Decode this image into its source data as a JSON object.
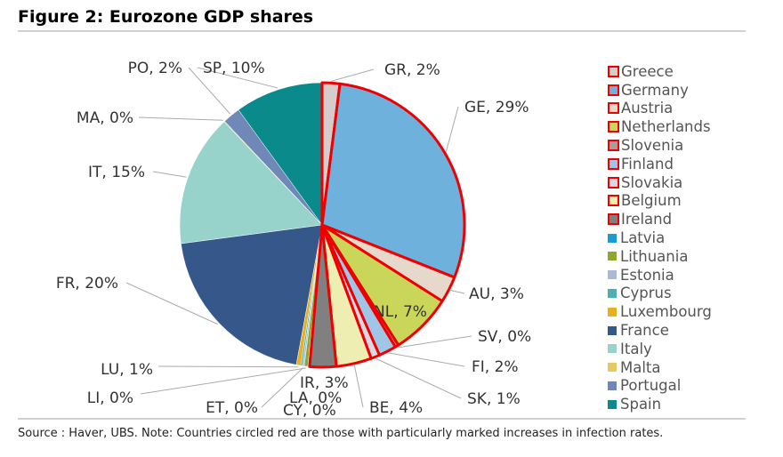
{
  "title": "Figure 2: Eurozone GDP shares",
  "source": "Source : Haver, UBS. Note: Countries circled red are those with particularly marked increases in infection rates.",
  "chart_data": {
    "type": "pie",
    "title": "Figure 2: Eurozone GDP shares",
    "unit": "%",
    "legend_position": "right",
    "slices": [
      {
        "name": "Greece",
        "label": "GR, 2%",
        "value": 2,
        "color": "#d6cccc",
        "highlight": true
      },
      {
        "name": "Germany",
        "label": "GE, 29%",
        "value": 29,
        "color": "#6fb1dd",
        "highlight": true
      },
      {
        "name": "Austria",
        "label": "AU, 3%",
        "value": 3,
        "color": "#e6d9cb",
        "highlight": true
      },
      {
        "name": "Netherlands",
        "label": "NL, 7%",
        "value": 7,
        "color": "#c9d65a",
        "highlight": true
      },
      {
        "name": "Slovenia",
        "label": "SV, 0%",
        "value": 0.4,
        "color": "#a0a0a0",
        "highlight": true
      },
      {
        "name": "Finland",
        "label": "FI, 2%",
        "value": 2,
        "color": "#9fc6e6",
        "highlight": true
      },
      {
        "name": "Slovakia",
        "label": "SK, 1%",
        "value": 1,
        "color": "#d9d9e6",
        "highlight": true
      },
      {
        "name": "Belgium",
        "label": "BE, 4%",
        "value": 4,
        "color": "#eeeeb3",
        "highlight": true
      },
      {
        "name": "Ireland",
        "label": "IR, 3%",
        "value": 3,
        "color": "#808080",
        "highlight": true
      },
      {
        "name": "Latvia",
        "label": "LA, 0%",
        "value": 0.2,
        "color": "#1a9bd7",
        "highlight": false
      },
      {
        "name": "Lithuania",
        "label": "LI, 0%",
        "value": 0.4,
        "color": "#8ea82f",
        "highlight": false
      },
      {
        "name": "Estonia",
        "label": "ET, 0%",
        "value": 0.2,
        "color": "#a9bad8",
        "highlight": false
      },
      {
        "name": "Cyprus",
        "label": "CY, 0%",
        "value": 0.2,
        "color": "#4cb0b3",
        "highlight": false
      },
      {
        "name": "Luxembourg",
        "label": "LU, 1%",
        "value": 0.5,
        "color": "#e6b020",
        "highlight": false
      },
      {
        "name": "France",
        "label": "FR, 20%",
        "value": 20,
        "color": "#36578a",
        "highlight": false
      },
      {
        "name": "Italy",
        "label": "IT, 15%",
        "value": 15,
        "color": "#97d3cb",
        "highlight": false
      },
      {
        "name": "Malta",
        "label": "MA, 0%",
        "value": 0.1,
        "color": "#e8c860",
        "highlight": false
      },
      {
        "name": "Portugal",
        "label": "PO, 2%",
        "value": 2,
        "color": "#6f88b8",
        "highlight": false
      },
      {
        "name": "Spain",
        "label": "SP, 10%",
        "value": 10,
        "color": "#0a8a8a",
        "highlight": false
      }
    ]
  }
}
